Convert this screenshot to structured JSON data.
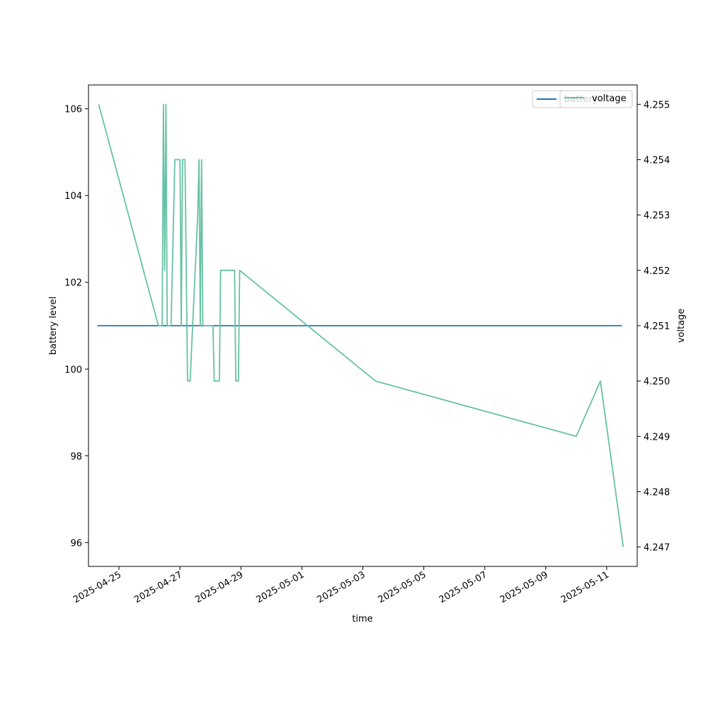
{
  "chart_data": {
    "type": "line",
    "title": "",
    "xlabel": "time",
    "ylabel_left": "battery level",
    "ylabel_right": "voltage",
    "x_ticks": [
      "2025-04-25",
      "2025-04-27",
      "2025-04-29",
      "2025-05-01",
      "2025-05-03",
      "2025-05-05",
      "2025-05-07",
      "2025-05-09",
      "2025-05-11"
    ],
    "y_left_ticks": [
      "96",
      "98",
      "100",
      "102",
      "104",
      "106"
    ],
    "y_right_ticks": [
      "4.247",
      "4.248",
      "4.249",
      "4.250",
      "4.251",
      "4.252",
      "4.253",
      "4.254",
      "4.255"
    ],
    "xlim": [
      "2025-04-24T00:00",
      "2025-05-12T00:00"
    ],
    "ylim_left": [
      95.45,
      106.55
    ],
    "ylim_right": [
      4.24665,
      4.25535
    ],
    "grid": false,
    "legend_placement": "top-right",
    "series": [
      {
        "name": "battery",
        "axis": "left",
        "color": "#1f77b4",
        "points": [
          [
            "2025-04-24T07:00",
            101
          ],
          [
            "2025-05-11T12:00",
            101
          ]
        ]
      },
      {
        "name": "voltage",
        "axis": "right",
        "color": "#66c2a5",
        "points": [
          [
            "2025-04-24T08:00",
            4.255
          ],
          [
            "2025-04-26T07:00",
            4.251
          ],
          [
            "2025-04-26T10:00",
            4.251
          ],
          [
            "2025-04-26T11:00",
            4.255
          ],
          [
            "2025-04-26T12:00",
            4.252
          ],
          [
            "2025-04-26T13:00",
            4.255
          ],
          [
            "2025-04-26T14:00",
            4.251
          ],
          [
            "2025-04-26T17:00",
            4.251
          ],
          [
            "2025-04-26T20:00",
            4.254
          ],
          [
            "2025-04-27T00:00",
            4.254
          ],
          [
            "2025-04-27T01:00",
            4.251
          ],
          [
            "2025-04-27T02:00",
            4.254
          ],
          [
            "2025-04-27T04:00",
            4.254
          ],
          [
            "2025-04-27T06:00",
            4.25
          ],
          [
            "2025-04-27T08:00",
            4.25
          ],
          [
            "2025-04-27T14:00",
            4.253
          ],
          [
            "2025-04-27T15:00",
            4.254
          ],
          [
            "2025-04-27T16:00",
            4.251
          ],
          [
            "2025-04-27T17:00",
            4.254
          ],
          [
            "2025-04-27T18:00",
            4.251
          ],
          [
            "2025-04-27T20:00",
            4.251
          ],
          [
            "2025-04-28T02:00",
            4.251
          ],
          [
            "2025-04-28T03:00",
            4.25
          ],
          [
            "2025-04-28T07:00",
            4.25
          ],
          [
            "2025-04-28T08:00",
            4.252
          ],
          [
            "2025-04-28T19:00",
            4.252
          ],
          [
            "2025-04-28T20:00",
            4.25
          ],
          [
            "2025-04-28T22:00",
            4.25
          ],
          [
            "2025-04-28T23:00",
            4.252
          ],
          [
            "2025-05-03T10:00",
            4.25
          ],
          [
            "2025-05-10T00:00",
            4.249
          ],
          [
            "2025-05-10T19:00",
            4.25
          ],
          [
            "2025-05-11T13:00",
            4.247
          ]
        ]
      }
    ],
    "legend": {
      "left_entry": "battery",
      "right_entry": "voltage"
    }
  }
}
